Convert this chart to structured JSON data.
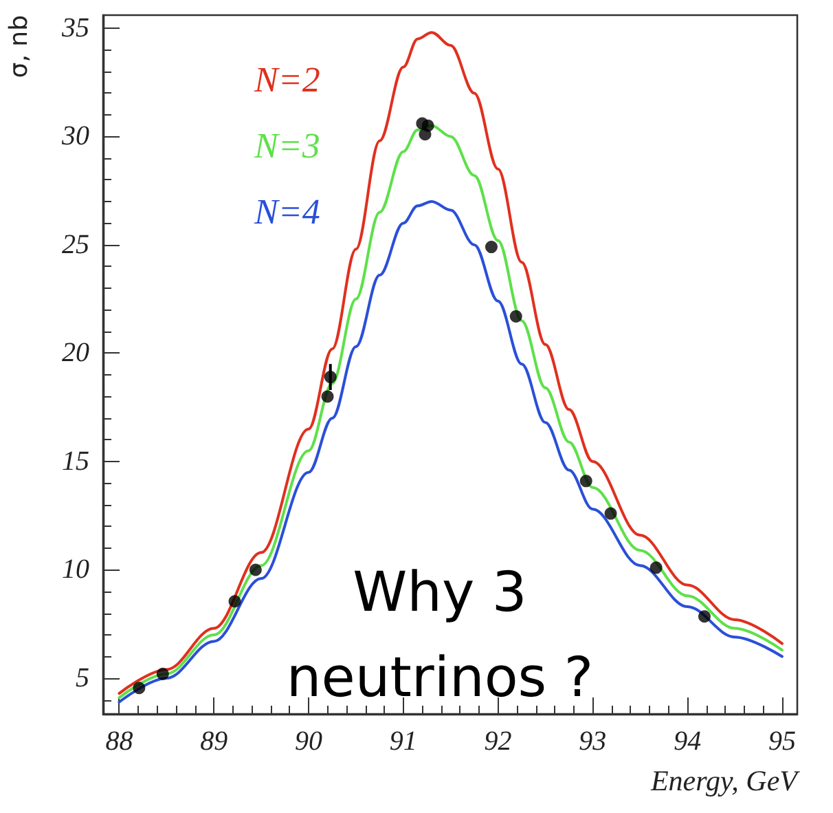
{
  "chart_data": {
    "type": "line",
    "xlabel": "Energy, GeV",
    "ylabel": "σ, nb",
    "annotations": [
      "Why 3 neutrinos ?"
    ],
    "xlim": [
      87.83,
      95.16
    ],
    "xticks": [
      88,
      89,
      90,
      91,
      92,
      93,
      94,
      95
    ],
    "ylim": [
      3.35,
      35.6
    ],
    "yticks": [
      5,
      10,
      15,
      20,
      25,
      30,
      35
    ],
    "grid": false,
    "legend": "top left",
    "marker": "none",
    "line_style": "solid",
    "series": [
      {
        "name": "N=2",
        "color": "#e0301e",
        "x": [
          88,
          88.5,
          89,
          89.5,
          90,
          90.25,
          90.5,
          90.75,
          91,
          91.15,
          91.3,
          91.5,
          91.75,
          92,
          92.25,
          92.5,
          92.75,
          93,
          93.5,
          94,
          94.5,
          95
        ],
        "values": [
          4.3,
          5.4,
          7.3,
          10.8,
          16.5,
          20.2,
          24.8,
          29.8,
          33.2,
          34.5,
          34.8,
          34.2,
          32.0,
          28.5,
          24.2,
          20.4,
          17.4,
          15.0,
          11.6,
          9.3,
          7.7,
          6.6
        ]
      },
      {
        "name": "N=3",
        "color": "#5ee04a",
        "x": [
          88,
          88.5,
          89,
          89.5,
          90,
          90.25,
          90.5,
          90.75,
          91,
          91.15,
          91.3,
          91.5,
          91.75,
          92,
          92.25,
          92.5,
          92.75,
          93,
          93.5,
          94,
          94.5,
          95
        ],
        "values": [
          4.1,
          5.2,
          7.0,
          10.2,
          15.5,
          18.6,
          22.5,
          26.5,
          29.3,
          30.3,
          30.5,
          30.0,
          28.2,
          25.2,
          21.5,
          18.4,
          15.9,
          13.8,
          10.9,
          8.8,
          7.3,
          6.3
        ]
      },
      {
        "name": "N=4",
        "color": "#2a4fd8",
        "x": [
          88,
          88.5,
          89,
          89.5,
          90,
          90.25,
          90.5,
          90.75,
          91,
          91.15,
          91.3,
          91.5,
          91.75,
          92,
          92.25,
          92.5,
          92.75,
          93,
          93.5,
          94,
          94.5,
          95
        ],
        "values": [
          3.9,
          5.0,
          6.7,
          9.6,
          14.5,
          17.0,
          20.3,
          23.6,
          26.0,
          26.8,
          27.0,
          26.6,
          25.0,
          22.4,
          19.5,
          16.8,
          14.6,
          12.8,
          10.2,
          8.3,
          6.9,
          6.0
        ]
      },
      {
        "type": "scatter",
        "marker": "circle",
        "color": "#000000",
        "x": [
          88.21,
          88.46,
          89.22,
          89.44,
          90.2,
          90.23,
          91.2,
          91.26,
          91.23,
          91.93,
          92.19,
          92.93,
          93.19,
          93.67,
          94.18
        ],
        "values": [
          4.55,
          5.2,
          8.55,
          10.0,
          18.0,
          18.9,
          30.6,
          30.5,
          30.1,
          24.9,
          21.7,
          14.1,
          12.6,
          10.1,
          7.85
        ],
        "errors": [
          null,
          null,
          null,
          null,
          null,
          0.6,
          null,
          null,
          null,
          null,
          null,
          null,
          null,
          null,
          null
        ]
      }
    ]
  }
}
